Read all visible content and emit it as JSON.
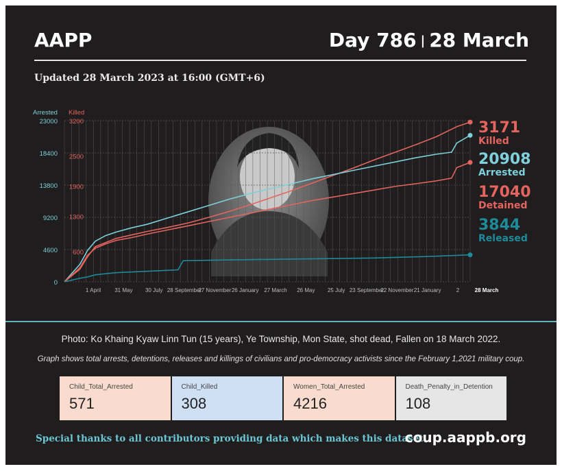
{
  "header": {
    "org": "AAPP",
    "day_label": "Day 786",
    "separator": "|",
    "date_label": "28 March",
    "updated": "Updated 28 March 2023 at 16:00 (GMT+6)"
  },
  "chart_data": {
    "type": "line",
    "left_axis": {
      "label": "Arrested",
      "ticks": [
        0,
        4600,
        9200,
        13800,
        18400,
        23000
      ],
      "tick_labels": [
        "0",
        "4600",
        "9200",
        "13800",
        "18400",
        "23000"
      ],
      "range": [
        0,
        23000
      ],
      "color": "#7fd0da"
    },
    "right_axis": {
      "label": "Killed",
      "ticks": [
        600,
        1300,
        1900,
        2500,
        3200
      ],
      "tick_labels": [
        "600",
        "1300",
        "1900",
        "2500",
        "3200"
      ],
      "range": [
        0,
        3200
      ],
      "color": "#e4655f"
    },
    "x_tick_labels": [
      "1 April",
      "31 May",
      "30 July",
      "28 September",
      "27 November",
      "26 January",
      "27 March",
      "26 May",
      "25 July",
      "23 September",
      "22 November",
      "21 January",
      "2",
      "28 March"
    ],
    "x_range": [
      0,
      786
    ],
    "series": [
      {
        "name": "Killed",
        "axis": "right",
        "color": "#e4655f",
        "last_value": "3171",
        "x": [
          0,
          30,
          45,
          60,
          80,
          100,
          130,
          160,
          200,
          240,
          280,
          320,
          360,
          400,
          440,
          480,
          520,
          560,
          600,
          640,
          680,
          720,
          760,
          786
        ],
        "y": [
          0,
          250,
          500,
          700,
          780,
          860,
          930,
          1000,
          1080,
          1170,
          1280,
          1400,
          1530,
          1670,
          1810,
          1960,
          2110,
          2260,
          2420,
          2570,
          2720,
          2880,
          3080,
          3171
        ]
      },
      {
        "name": "Arrested",
        "axis": "left",
        "color": "#7fd0da",
        "last_value": "20908",
        "x": [
          0,
          30,
          45,
          60,
          80,
          100,
          130,
          160,
          200,
          240,
          280,
          320,
          360,
          400,
          440,
          480,
          520,
          560,
          600,
          640,
          680,
          720,
          750,
          760,
          786
        ],
        "y": [
          0,
          2500,
          4500,
          5800,
          6600,
          7100,
          7700,
          8200,
          9100,
          10000,
          10900,
          11800,
          12600,
          13300,
          14000,
          14700,
          15300,
          15900,
          16500,
          17100,
          17700,
          18200,
          18500,
          19800,
          20908
        ]
      },
      {
        "name": "Detained",
        "axis": "left",
        "color": "#e4655f",
        "last_value": "17040",
        "x": [
          0,
          30,
          45,
          60,
          80,
          100,
          130,
          160,
          200,
          240,
          280,
          320,
          360,
          400,
          440,
          480,
          520,
          560,
          600,
          640,
          680,
          720,
          750,
          760,
          786
        ],
        "y": [
          0,
          2000,
          3800,
          4800,
          5400,
          5900,
          6300,
          6800,
          7400,
          8000,
          8600,
          9200,
          9800,
          10400,
          11000,
          11600,
          12100,
          12600,
          13100,
          13600,
          14000,
          14400,
          14800,
          16300,
          17040
        ]
      },
      {
        "name": "Released",
        "axis": "left",
        "color": "#1f8a9a",
        "last_value": "3844",
        "x": [
          0,
          30,
          45,
          60,
          100,
          160,
          220,
          230,
          300,
          400,
          500,
          600,
          700,
          786
        ],
        "y": [
          0,
          500,
          700,
          1000,
          1300,
          1500,
          1700,
          3000,
          3100,
          3200,
          3300,
          3400,
          3600,
          3844
        ]
      }
    ]
  },
  "caption": "Photo: Ko Khaing Kyaw Linn Tun (15 years), Ye Township, Mon State,  shot dead, Fallen on 18 March 2022.",
  "note": "Graph shows total arrests, detentions, releases and killings of civilians and pro-democracy activists since the February 1,2021 military coup.",
  "stats": [
    {
      "label": "Child_Total_Arrested",
      "value": "571",
      "bg": "#f9dccd"
    },
    {
      "label": "Child_Killed",
      "value": "308",
      "bg": "#cfe0f5"
    },
    {
      "label": "Women_Total_Arrested",
      "value": "4216",
      "bg": "#f9dccd"
    },
    {
      "label": "Death_Penalty_in_Detention",
      "value": "108",
      "bg": "#e6e6e6"
    }
  ],
  "footer": {
    "thanks": "Special thanks to all contributors providing data which makes this dataset.",
    "url": "coup.aappb.org"
  }
}
